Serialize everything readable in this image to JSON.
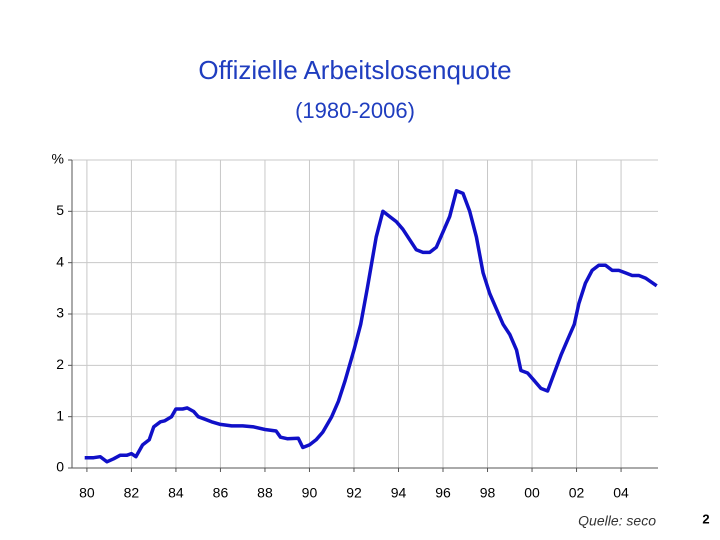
{
  "chart_data": {
    "type": "line",
    "title": "Offizielle Arbeitslosenquote",
    "subtitle": "(1980-2006)",
    "source": "Quelle: seco",
    "page_number": "2",
    "x": [
      1979.9,
      1980.3,
      1980.6,
      1980.9,
      1981.2,
      1981.5,
      1981.8,
      1982.0,
      1982.2,
      1982.5,
      1982.8,
      1983.0,
      1983.3,
      1983.5,
      1983.8,
      1984.0,
      1984.3,
      1984.5,
      1984.8,
      1985.0,
      1985.3,
      1985.6,
      1986.0,
      1986.5,
      1987.0,
      1987.5,
      1988.0,
      1988.5,
      1988.7,
      1989.0,
      1989.5,
      1989.7,
      1990.0,
      1990.3,
      1990.6,
      1991.0,
      1991.3,
      1991.6,
      1992.0,
      1992.3,
      1992.6,
      1993.0,
      1993.3,
      1993.6,
      1993.9,
      1994.2,
      1994.5,
      1994.8,
      1995.1,
      1995.4,
      1995.7,
      1996.0,
      1996.3,
      1996.6,
      1996.9,
      1997.2,
      1997.5,
      1997.8,
      1998.1,
      1998.4,
      1998.7,
      1999.0,
      1999.3,
      1999.5,
      1999.8,
      2000.1,
      2000.4,
      2000.7,
      2001.0,
      2001.3,
      2001.6,
      2001.9,
      2002.1,
      2002.4,
      2002.7,
      2003.0,
      2003.3,
      2003.6,
      2003.9,
      2004.2,
      2004.5,
      2004.8,
      2005.1,
      2005.6
    ],
    "values": [
      0.2,
      0.2,
      0.22,
      0.12,
      0.18,
      0.25,
      0.25,
      0.28,
      0.22,
      0.45,
      0.55,
      0.8,
      0.9,
      0.92,
      1.0,
      1.15,
      1.15,
      1.17,
      1.1,
      1.0,
      0.95,
      0.9,
      0.85,
      0.82,
      0.82,
      0.8,
      0.75,
      0.72,
      0.6,
      0.57,
      0.58,
      0.4,
      0.45,
      0.55,
      0.7,
      1.0,
      1.3,
      1.7,
      2.3,
      2.8,
      3.5,
      4.5,
      5.0,
      4.9,
      4.8,
      4.65,
      4.45,
      4.25,
      4.2,
      4.2,
      4.3,
      4.6,
      4.9,
      5.4,
      5.35,
      5.0,
      4.5,
      3.8,
      3.4,
      3.1,
      2.8,
      2.6,
      2.3,
      1.9,
      1.85,
      1.7,
      1.55,
      1.5,
      1.85,
      2.2,
      2.5,
      2.8,
      3.2,
      3.6,
      3.85,
      3.95,
      3.95,
      3.85,
      3.85,
      3.8,
      3.75,
      3.75,
      3.7,
      3.55
    ],
    "color": "#1010c8",
    "xlim": [
      1979.33,
      2005.66
    ],
    "ylim": [
      0,
      6
    ],
    "xticks": [
      {
        "value": 1980,
        "label": "80"
      },
      {
        "value": 1982,
        "label": "82"
      },
      {
        "value": 1984,
        "label": "84"
      },
      {
        "value": 1986,
        "label": "86"
      },
      {
        "value": 1988,
        "label": "88"
      },
      {
        "value": 1990,
        "label": "90"
      },
      {
        "value": 1992,
        "label": "92"
      },
      {
        "value": 1994,
        "label": "94"
      },
      {
        "value": 1996,
        "label": "96"
      },
      {
        "value": 1998,
        "label": "98"
      },
      {
        "value": 2000,
        "label": "00"
      },
      {
        "value": 2002,
        "label": "02"
      },
      {
        "value": 2004,
        "label": "04"
      }
    ],
    "yticks": [
      0,
      1,
      2,
      3,
      4,
      5,
      {
        "value": 6,
        "label": "%"
      }
    ],
    "grid": true
  }
}
